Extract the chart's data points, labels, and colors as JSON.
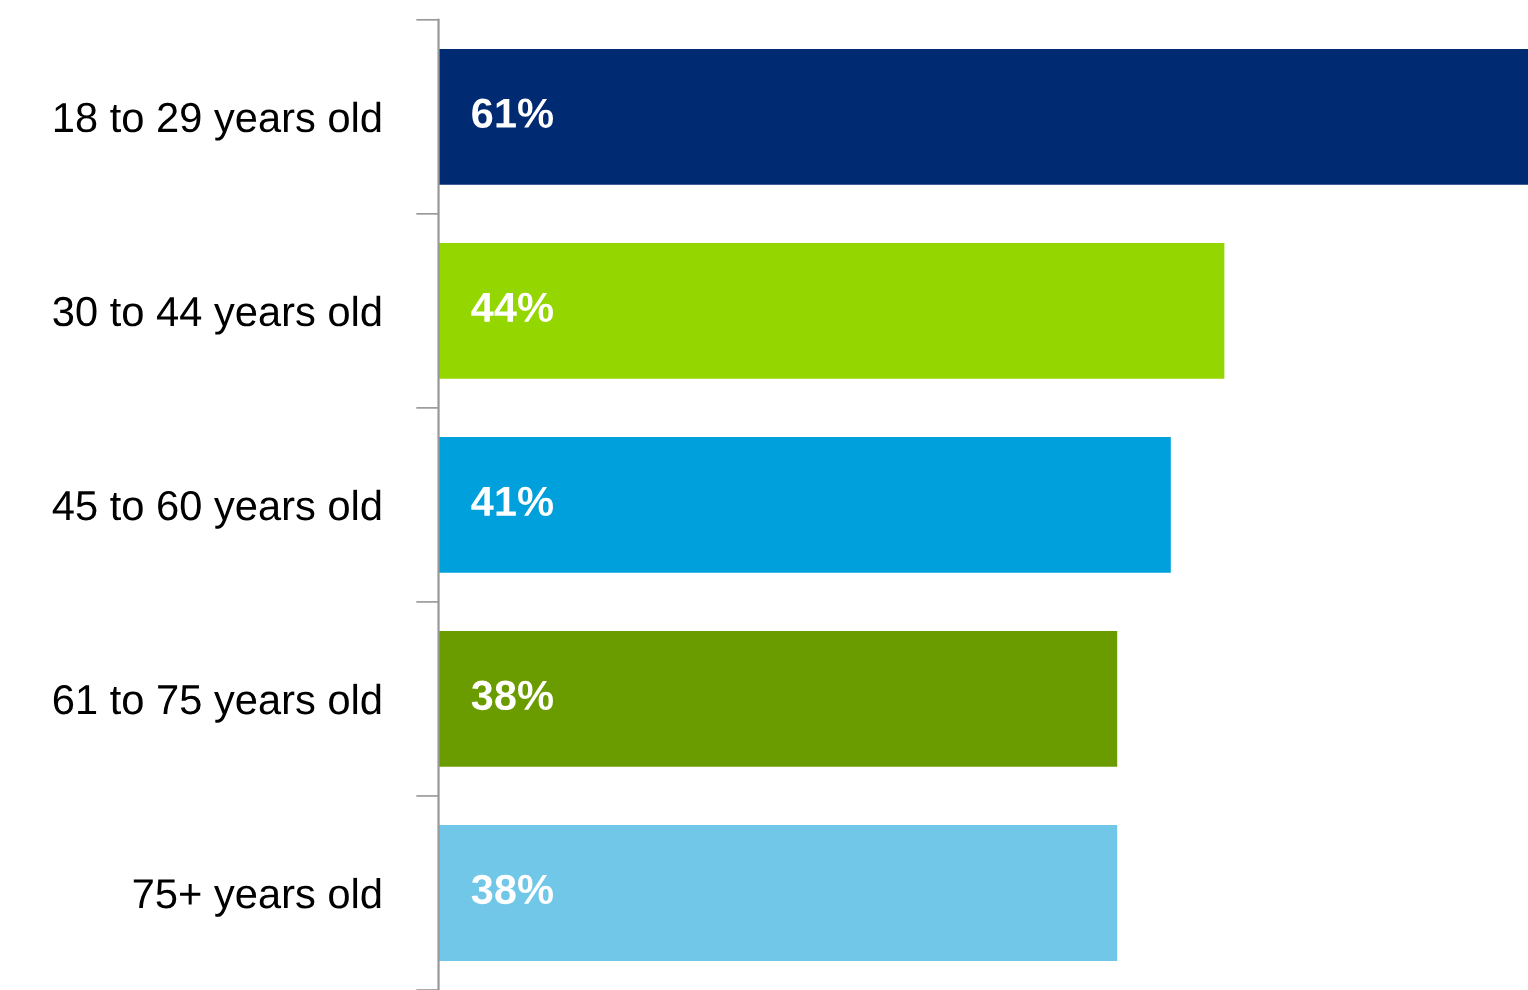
{
  "chart_data": {
    "type": "bar",
    "orientation": "horizontal",
    "categories": [
      "18 to 29 years old",
      "30 to 44 years old",
      "45 to 60 years old",
      "61 to 75 years old",
      "75+ years old"
    ],
    "values": [
      61,
      44,
      41,
      38,
      38
    ],
    "value_labels": [
      "61%",
      "44%",
      "41%",
      "38%",
      "38%"
    ],
    "colors": [
      "#002b73",
      "#94d600",
      "#00a0dc",
      "#6a9c00",
      "#71c7e8"
    ],
    "xlim": [
      0,
      61
    ],
    "tick_labels": "y",
    "grid": false,
    "legend": false
  }
}
